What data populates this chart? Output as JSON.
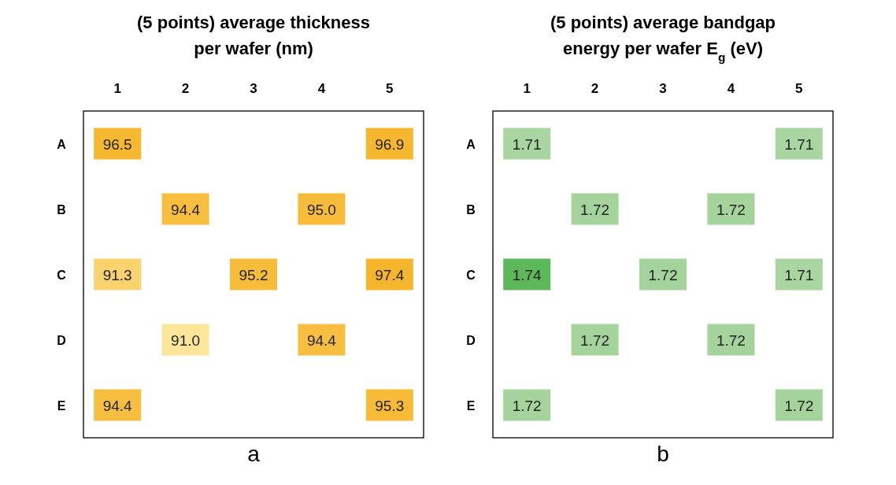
{
  "chart_data": [
    {
      "type": "heatmap",
      "title": "(5 points) average thickness per wafer (nm)",
      "categories": [
        "1",
        "2",
        "3",
        "4",
        "5"
      ],
      "y_categories": [
        "A",
        "B",
        "C",
        "D",
        "E"
      ],
      "cells": [
        [
          96.5,
          null,
          null,
          null,
          96.9
        ],
        [
          null,
          94.4,
          null,
          95.0,
          null
        ],
        [
          91.3,
          null,
          95.2,
          null,
          97.4
        ],
        [
          null,
          91.0,
          null,
          94.4,
          null
        ],
        [
          94.4,
          null,
          null,
          null,
          95.3
        ]
      ],
      "cell_labels": [
        [
          "96.5",
          null,
          null,
          null,
          "96.9"
        ],
        [
          null,
          "94.4",
          null,
          "95.0",
          null
        ],
        [
          "91.3",
          null,
          "95.2",
          null,
          "97.4"
        ],
        [
          null,
          "91.0",
          null,
          "94.4",
          null
        ],
        [
          "94.4",
          null,
          null,
          null,
          "95.3"
        ]
      ],
      "annotations": [
        "a"
      ]
    },
    {
      "type": "heatmap",
      "title": "(5 points) average bandgap energy per wafer E$_{g}$ (eV)",
      "categories": [
        "1",
        "2",
        "3",
        "4",
        "5"
      ],
      "y_categories": [
        "A",
        "B",
        "C",
        "D",
        "E"
      ],
      "cells": [
        [
          1.71,
          null,
          null,
          null,
          1.71
        ],
        [
          null,
          1.72,
          null,
          1.72,
          null
        ],
        [
          1.74,
          null,
          1.72,
          null,
          1.71
        ],
        [
          null,
          1.72,
          null,
          1.72,
          null
        ],
        [
          1.72,
          null,
          null,
          null,
          1.72
        ]
      ],
      "data_labels": true,
      "annotations": [
        "b"
      ]
    }
  ]
}
